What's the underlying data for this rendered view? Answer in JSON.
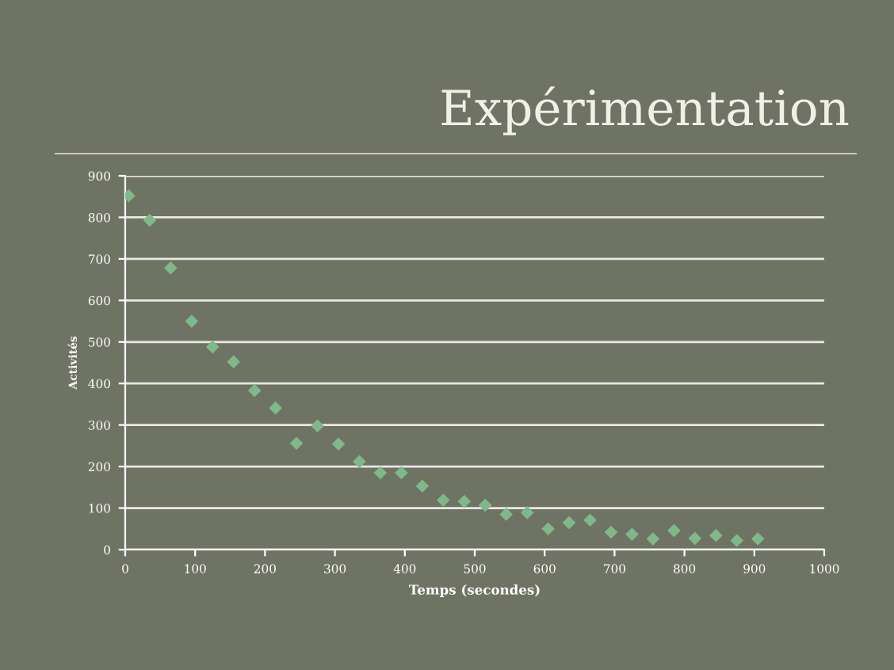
{
  "chart_data": {
    "type": "scatter",
    "title": "Expérimentation",
    "xlabel": "Temps (secondes)",
    "ylabel": "Activités",
    "x": [
      5,
      35,
      65,
      95,
      125,
      155,
      185,
      215,
      245,
      275,
      305,
      335,
      365,
      395,
      425,
      455,
      485,
      515,
      545,
      575,
      605,
      635,
      665,
      695,
      725,
      755,
      785,
      815,
      845,
      875,
      905
    ],
    "series": [
      {
        "color": "#7fb88a",
        "values": [
          852,
          793,
          678,
          550,
          488,
          452,
          383,
          341,
          256,
          298,
          254,
          212,
          185,
          185,
          153,
          119,
          116,
          107,
          85,
          89,
          50,
          65,
          71,
          42,
          37,
          26,
          46,
          27,
          34,
          22,
          26
        ]
      }
    ],
    "xlim": [
      0,
      1000
    ],
    "xticks": [
      0,
      100,
      200,
      300,
      400,
      500,
      600,
      700,
      800,
      900,
      1000
    ],
    "ylim": [
      0,
      900
    ],
    "yticks": [
      0,
      100,
      200,
      300,
      400,
      500,
      600,
      700,
      800,
      900
    ],
    "grid": "y",
    "marker": "diamond"
  }
}
